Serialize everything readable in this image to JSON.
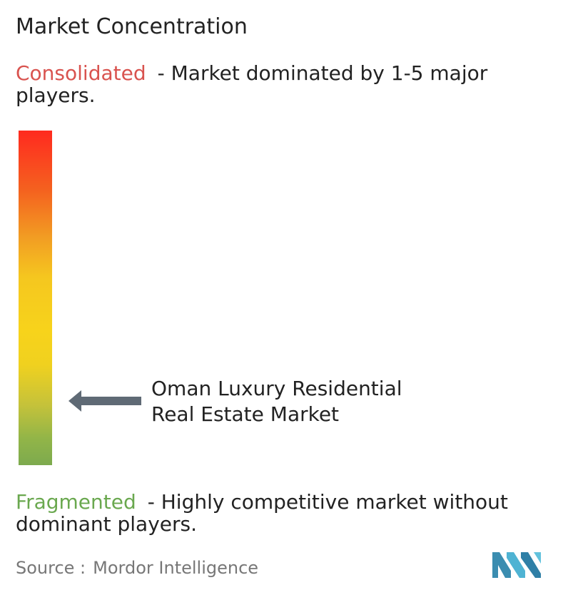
{
  "chart_data": {
    "type": "market-concentration-scale",
    "title": "Market Concentration",
    "scale_top": {
      "label": "Consolidated",
      "description": "- Market dominated by 1-5 major players.",
      "color": "#d9534f"
    },
    "scale_bottom": {
      "label": "Fragmented",
      "description": "- Highly competitive market without dominant players.",
      "color": "#6aa84f"
    },
    "marker": {
      "label_line1": "Oman Luxury Residential",
      "label_line2": "Real Estate Market",
      "position_from_top": 0.81
    },
    "gradient_colors": [
      "#ff2a1f",
      "#f4621f",
      "#f29d23",
      "#f5c71f",
      "#f7d31b",
      "#c5c23a",
      "#7daa4e"
    ]
  },
  "source": {
    "prefix": "Source :",
    "name": "Mordor Intelligence"
  },
  "logo": {
    "icon": "mordor-intelligence-logo-icon",
    "color": "#4aa8c8"
  }
}
